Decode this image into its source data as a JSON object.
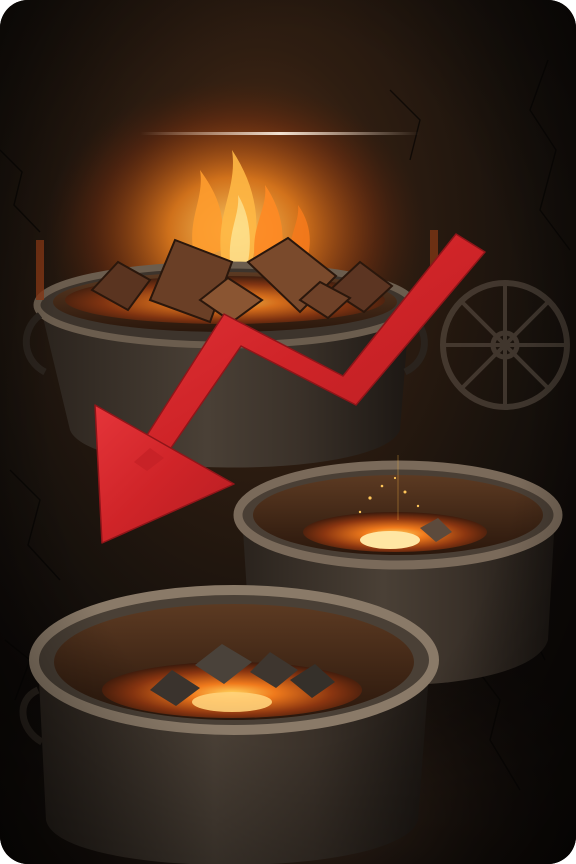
{
  "image": {
    "subject": "cauldrons-with-embers",
    "palette": {
      "background": "#120d09",
      "cauldron_iron": "#4a4036",
      "cauldron_rim": "#6b5d4e",
      "ember_glow": "#ff9a2a",
      "fire_core": "#ffd36b",
      "arrow_red": "#d9262b",
      "divider_line": "#e7d2bf"
    },
    "elements": {
      "arrow_direction": "down",
      "cauldron_count": 3
    }
  }
}
